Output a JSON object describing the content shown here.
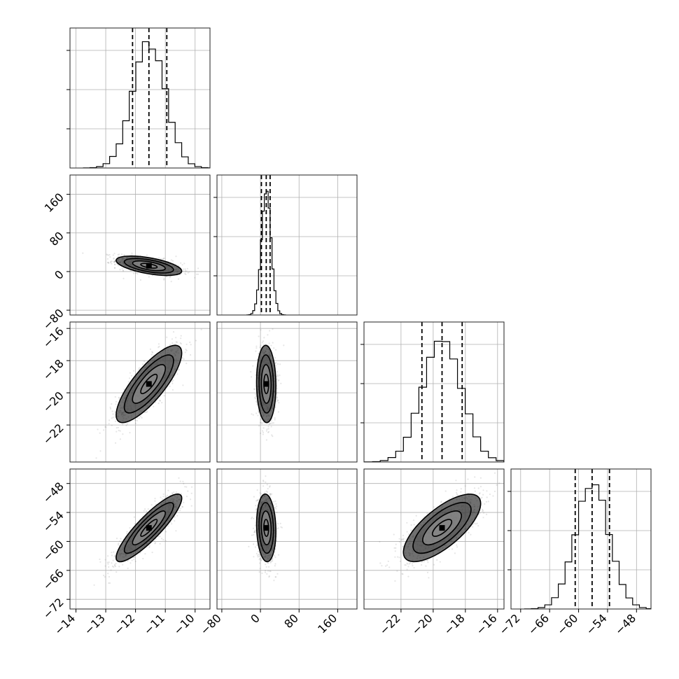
{
  "chart_data": {
    "type": "corner",
    "parameters": [
      {
        "range": [
          -14.2,
          -9.5
        ],
        "ticks": [
          -14,
          -13,
          -12,
          -11,
          -10
        ],
        "tick_labels": [
          "−14",
          "−13",
          "−12",
          "−11",
          "−10"
        ],
        "mean": -11.55,
        "sd": 0.55,
        "quantiles": [
          -12.1,
          -11.55,
          -10.95
        ],
        "histogram_peak": 1.0
      },
      {
        "range": [
          -90,
          200
        ],
        "ticks": [
          -80,
          0,
          80,
          160
        ],
        "tick_labels": [
          "−80",
          "0",
          "80",
          "160"
        ],
        "mean": 12,
        "sd": 10,
        "quantiles": [
          2,
          12,
          20
        ],
        "histogram_peak": 1.0
      },
      {
        "range": [
          -24.3,
          -15.6
        ],
        "ticks": [
          -22,
          -20,
          -18,
          -16
        ],
        "tick_labels": [
          "−22",
          "−20",
          "−18",
          "−16"
        ],
        "mean": -19.45,
        "sd": 1.2,
        "quantiles": [
          -20.7,
          -19.45,
          -18.2
        ],
        "histogram_peak": 1.0
      },
      {
        "range": [
          -74,
          -45
        ],
        "ticks": [
          -72,
          -66,
          -60,
          -54,
          -48
        ],
        "tick_labels": [
          "−72",
          "−66",
          "−60",
          "−54",
          "−48"
        ],
        "mean": -57.2,
        "sd": 3.5,
        "quantiles": [
          -60.7,
          -57.2,
          -53.6
        ],
        "histogram_peak": 1.0
      }
    ],
    "correlations": [
      {
        "pair": [
          0,
          1
        ],
        "rho": -0.55
      },
      {
        "pair": [
          0,
          2
        ],
        "rho": 0.8
      },
      {
        "pair": [
          0,
          3
        ],
        "rho": 0.88
      },
      {
        "pair": [
          1,
          2
        ],
        "rho": -0.05
      },
      {
        "pair": [
          1,
          3
        ],
        "rho": -0.1
      },
      {
        "pair": [
          2,
          3
        ],
        "rho": 0.72
      }
    ],
    "contour_levels_sigma": [
      0.5,
      1.0,
      1.5,
      2.0
    ],
    "grid": true,
    "xlabel": "",
    "ylabel": ""
  }
}
